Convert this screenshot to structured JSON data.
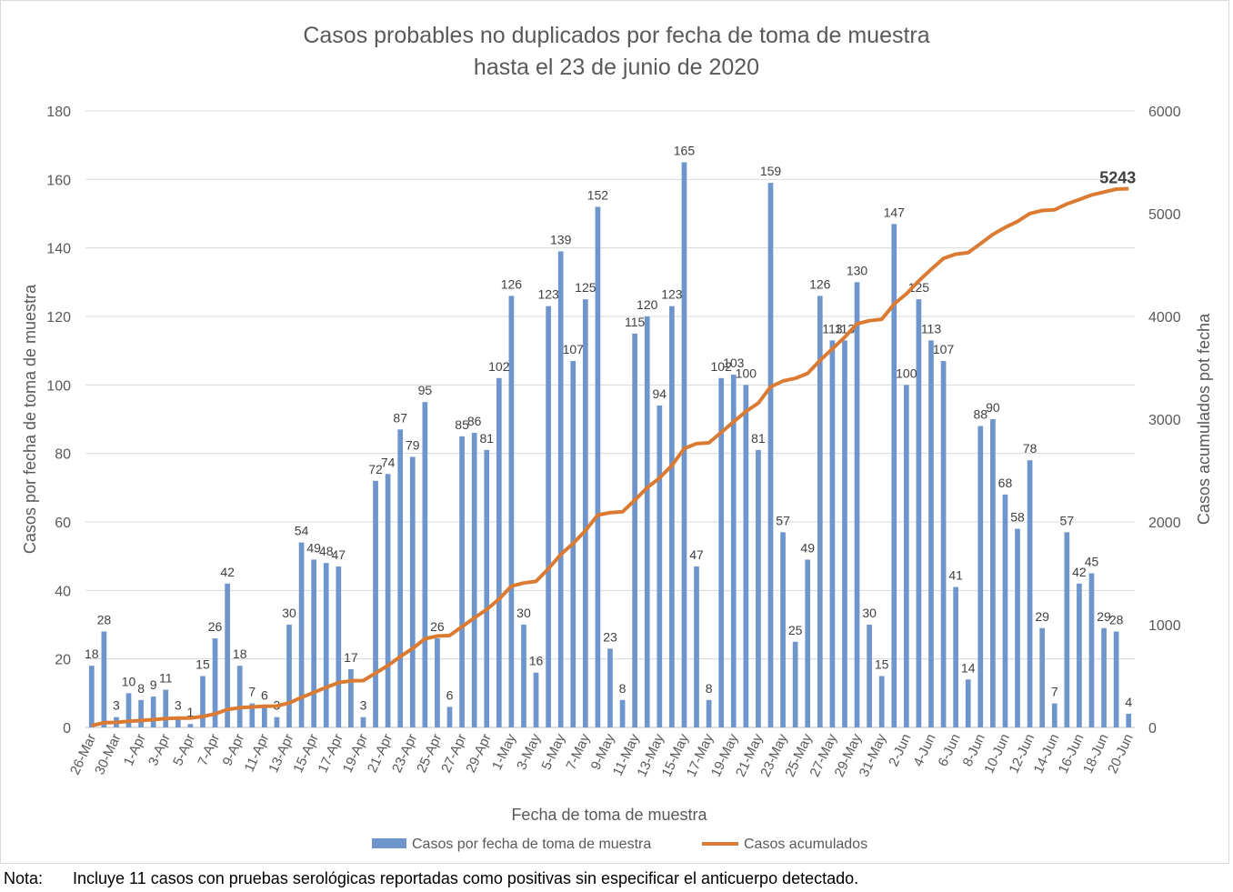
{
  "chart_data": {
    "type": "bar",
    "title": "Casos probables no duplicados por fecha de toma de muestra",
    "subtitle": "hasta el 23 de junio de 2020",
    "xlabel": "Fecha de toma de muestra",
    "ylabel": "Casos por fecha de toma de muestra",
    "y2label": "Casos acumulados pot fecha",
    "ylim": [
      0,
      180
    ],
    "yticks": [
      0,
      20,
      40,
      60,
      80,
      100,
      120,
      140,
      160,
      180
    ],
    "y2lim": [
      0,
      6000
    ],
    "y2ticks": [
      0,
      1000,
      2000,
      3000,
      4000,
      5000,
      6000
    ],
    "grid": true,
    "legend_position": "bottom",
    "x_tick_labels": [
      "26-Mar",
      "30-Mar",
      "1-Apr",
      "3-Apr",
      "5-Apr",
      "7-Apr",
      "9-Apr",
      "11-Apr",
      "13-Apr",
      "15-Apr",
      "17-Apr",
      "19-Apr",
      "21-Apr",
      "23-Apr",
      "25-Apr",
      "27-Apr",
      "29-Apr",
      "1-May",
      "3-May",
      "5-May",
      "7-May",
      "9-May",
      "11-May",
      "13-May",
      "15-May",
      "17-May",
      "19-May",
      "21-May",
      "23-May",
      "25-May",
      "27-May",
      "29-May",
      "31-May",
      "2-Jun",
      "4-Jun",
      "6-Jun",
      "8-Jun",
      "10-Jun",
      "12-Jun",
      "14-Jun",
      "16-Jun",
      "18-Jun",
      "20-Jun"
    ],
    "series": [
      {
        "name": "Casos por fecha de toma de muestra",
        "type": "bar",
        "color": "#6f96cc",
        "values": [
          18,
          28,
          3,
          10,
          8,
          9,
          11,
          3,
          1,
          15,
          26,
          42,
          18,
          7,
          6,
          3,
          30,
          54,
          49,
          48,
          47,
          17,
          3,
          72,
          74,
          87,
          79,
          95,
          26,
          6,
          85,
          86,
          81,
          102,
          126,
          30,
          16,
          123,
          139,
          107,
          125,
          152,
          23,
          8,
          115,
          120,
          94,
          123,
          165,
          47,
          8,
          102,
          103,
          100,
          81,
          159,
          57,
          25,
          49,
          126,
          113,
          113,
          130,
          30,
          15,
          147,
          100,
          125,
          113,
          107,
          41,
          14,
          88,
          90,
          68,
          58,
          78,
          29,
          7,
          57,
          42,
          45,
          29,
          28,
          4
        ]
      },
      {
        "name": "Casos acumulados",
        "type": "line",
        "color": "#db7b33",
        "values": [
          18,
          46,
          49,
          59,
          67,
          76,
          87,
          90,
          91,
          106,
          132,
          174,
          192,
          199,
          205,
          208,
          238,
          292,
          341,
          389,
          436,
          453,
          456,
          528,
          602,
          689,
          768,
          863,
          889,
          895,
          980,
          1066,
          1147,
          1249,
          1375,
          1405,
          1421,
          1544,
          1683,
          1790,
          1915,
          2067,
          2090,
          2098,
          2213,
          2333,
          2427,
          2550,
          2715,
          2762,
          2770,
          2872,
          2975,
          3075,
          3156,
          3315,
          3372,
          3397,
          3446,
          3572,
          3685,
          3798,
          3928,
          3958,
          3973,
          4120,
          4220,
          4345,
          4458,
          4565,
          4606,
          4620,
          4708,
          4798,
          4866,
          4924,
          5002,
          5031,
          5038,
          5095,
          5137,
          5182,
          5211,
          5239,
          5243
        ]
      }
    ],
    "annotations": [
      {
        "text": "5243",
        "series": "Casos acumulados",
        "point": "last"
      }
    ]
  },
  "note": {
    "label": "Nota:",
    "text": "Incluye 11 casos con pruebas serológicas reportadas como positivas sin especificar el anticuerpo detectado."
  }
}
